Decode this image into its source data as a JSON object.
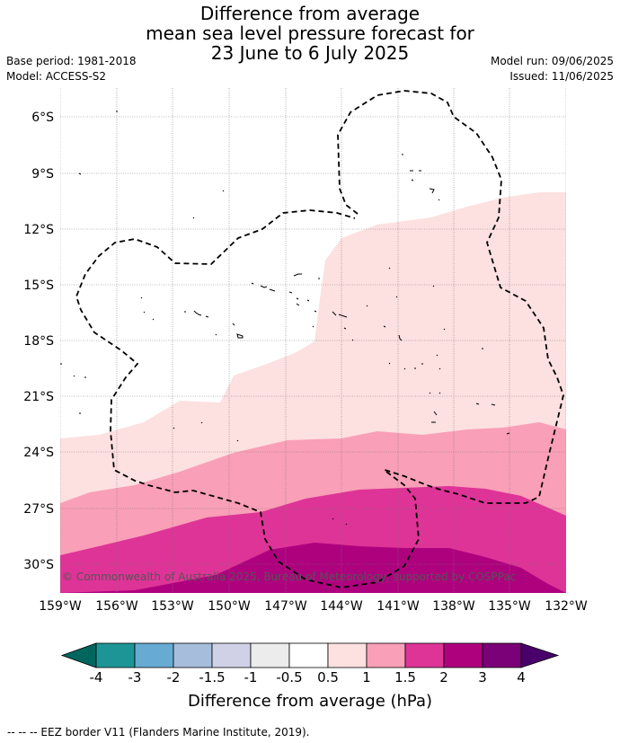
{
  "header": {
    "title_line1": "Difference from average",
    "title_line2": "mean sea level pressure forecast for",
    "title_line3": "23 June to 6 July 2025",
    "base_period": "Base period: 1981-2018",
    "model": "Model: ACCESS-S2",
    "model_run": "Model run: 09/06/2025",
    "issued": "Issued: 11/06/2025"
  },
  "map": {
    "lat_ticks": [
      "6°S",
      "9°S",
      "12°S",
      "15°S",
      "18°S",
      "21°S",
      "24°S",
      "27°S",
      "30°S"
    ],
    "lon_ticks": [
      "159°W",
      "156°W",
      "153°W",
      "150°W",
      "147°W",
      "144°W",
      "141°W",
      "138°W",
      "135°W",
      "132°W"
    ],
    "copyright": "© Commonwealth of Australia 2025, Bureau of Meteorology, supported by COSPPac",
    "band_colors": {
      "0.5 to 1": "#fde0e0",
      "1 to 1.5": "#f99fb7",
      "1.5 to 2": "#de3497",
      "2 to 3": "#ae017e"
    }
  },
  "colorbar": {
    "labels": [
      "-4",
      "-3",
      "-2",
      "-1.5",
      "-1",
      "-0.5",
      "0.5",
      "1",
      "1.5",
      "2",
      "3",
      "4"
    ],
    "colors": [
      "#1d9596",
      "#67abd3",
      "#a6bddb",
      "#d0d1e6",
      "#ececec",
      "#ffffff",
      "#fde0e0",
      "#f99fb7",
      "#de3497",
      "#ae017e",
      "#7a0177"
    ],
    "under_color": "#01665e",
    "over_color": "#49006a",
    "title": "Difference from average (hPa)"
  },
  "footnote": "--  --  -- EEZ border V11 (Flanders Marine Institute, 2019)."
}
